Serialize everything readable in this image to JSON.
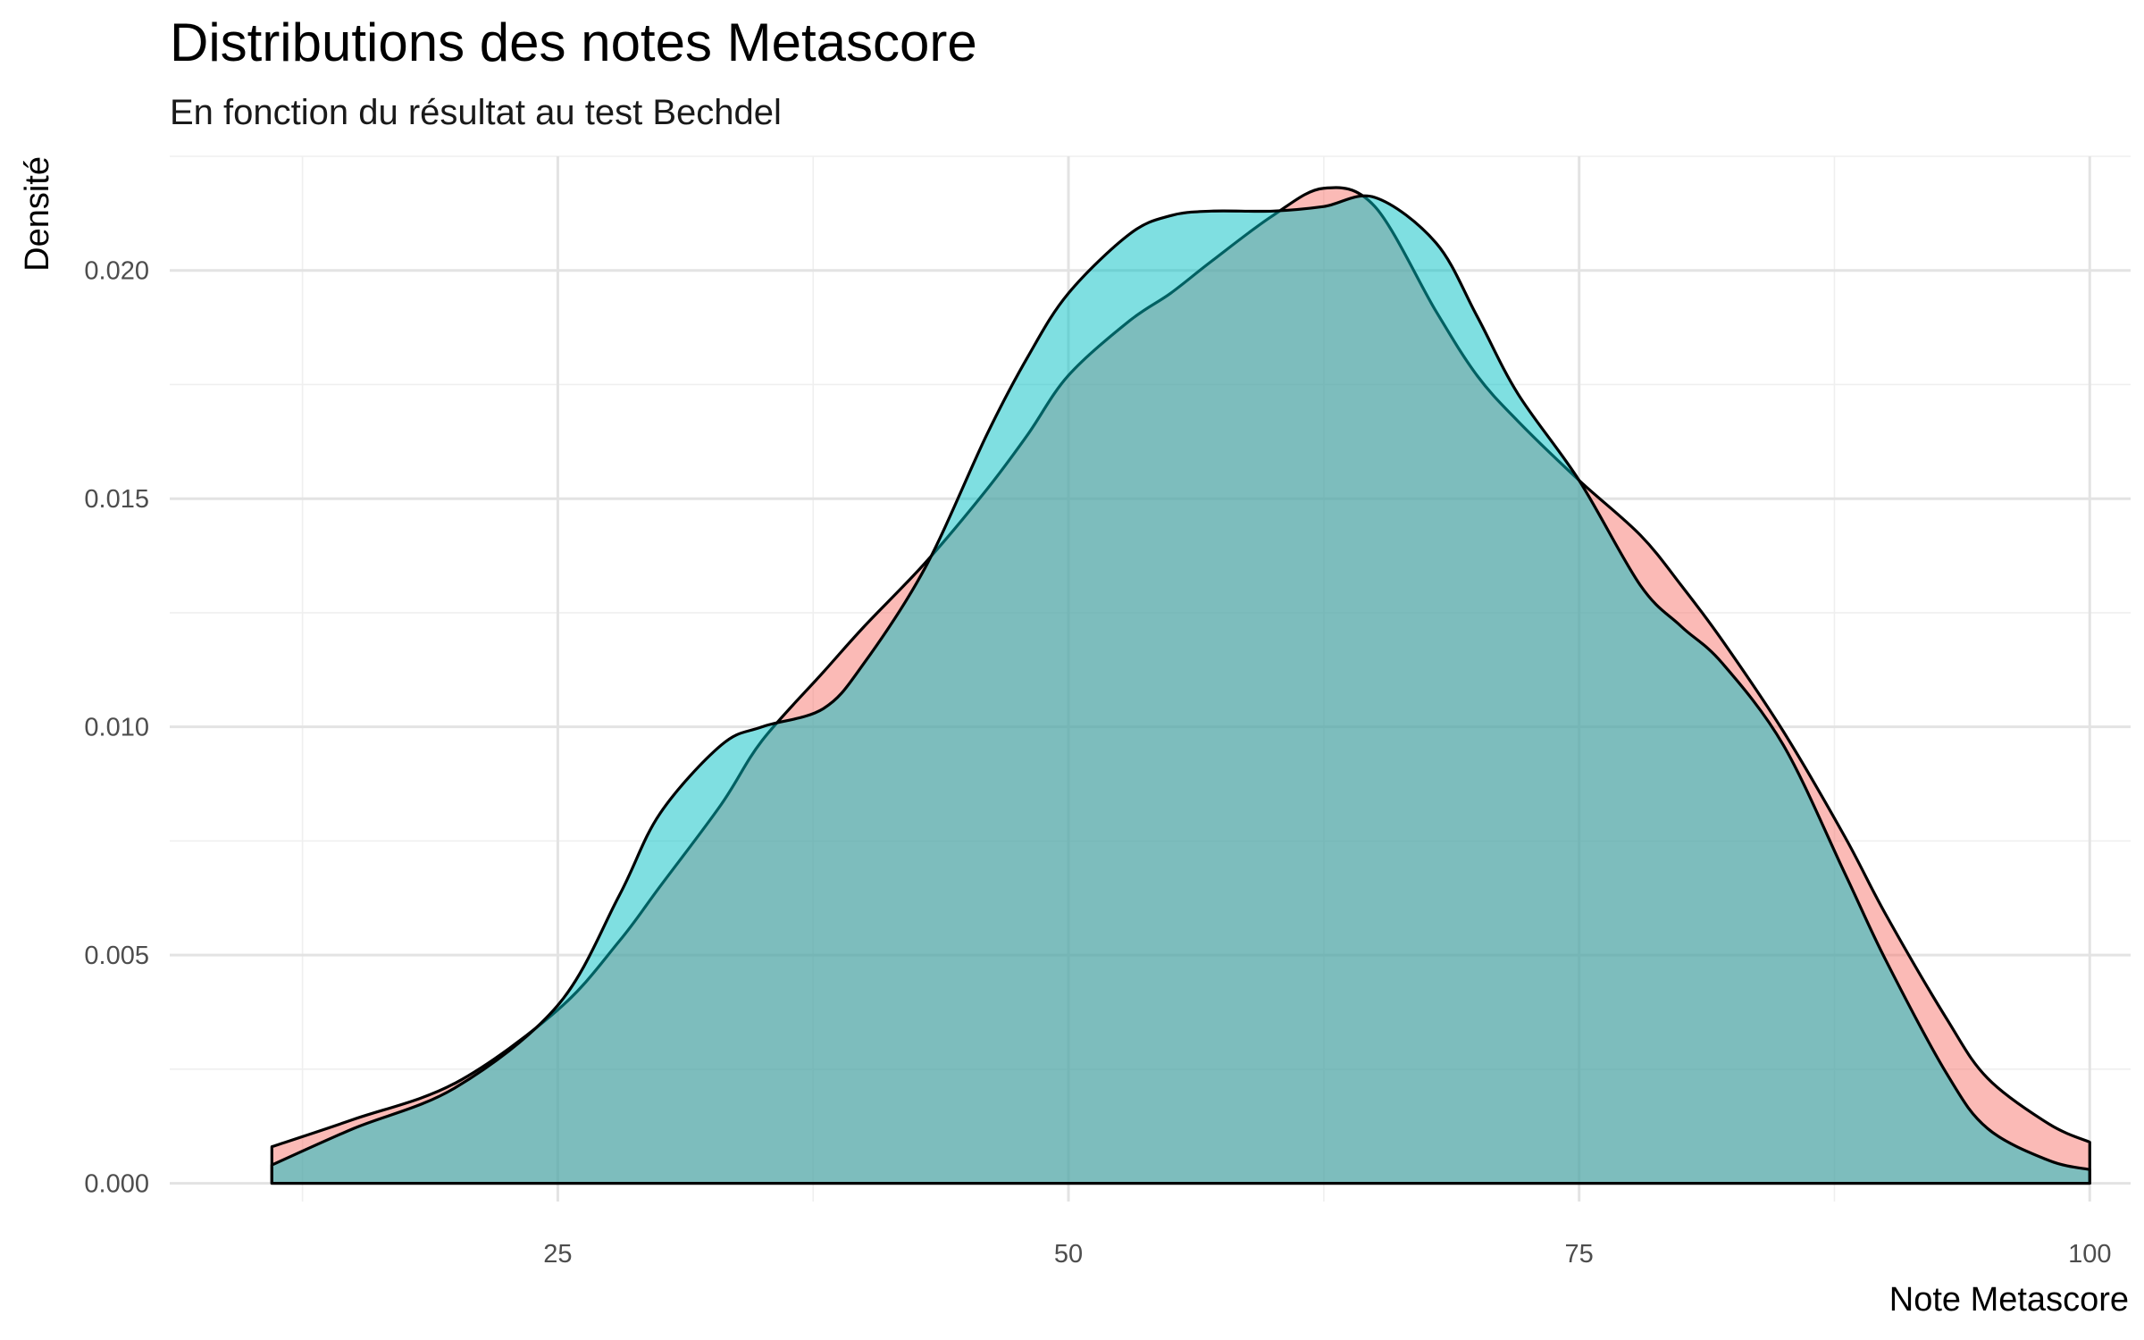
{
  "chart_data": {
    "type": "area",
    "title": "Distributions des notes Metascore",
    "subtitle": "En fonction du résultat au test Bechdel",
    "xlabel": "Note Metascore",
    "ylabel": "Densité",
    "xlim": [
      6,
      102
    ],
    "ylim": [
      -0.0004,
      0.0225
    ],
    "x_ticks": [
      25,
      50,
      75,
      100
    ],
    "y_ticks": [
      0.0,
      0.005,
      0.01,
      0.015,
      0.02
    ],
    "x_tick_labels": [
      "25",
      "50",
      "75",
      "100"
    ],
    "y_tick_labels": [
      "0.000",
      "0.005",
      "0.010",
      "0.015",
      "0.020"
    ],
    "grid": true,
    "legend": "none",
    "fill_opacity": 0.5,
    "colors": {
      "series_1": "#F8766D",
      "series_2": "#00BFC4",
      "outline": "#000000"
    },
    "series": [
      {
        "color": "#F8766D",
        "points": [
          [
            11,
            0.0008
          ],
          [
            15,
            0.0014
          ],
          [
            20,
            0.0022
          ],
          [
            25,
            0.0038
          ],
          [
            28,
            0.0053
          ],
          [
            30,
            0.0065
          ],
          [
            33,
            0.0083
          ],
          [
            35,
            0.0097
          ],
          [
            38,
            0.0112
          ],
          [
            40,
            0.0122
          ],
          [
            43,
            0.0136
          ],
          [
            46,
            0.0152
          ],
          [
            48,
            0.0164
          ],
          [
            50,
            0.0177
          ],
          [
            53,
            0.0189
          ],
          [
            55,
            0.0195
          ],
          [
            57,
            0.0202
          ],
          [
            60,
            0.0212
          ],
          [
            62.5,
            0.0218
          ],
          [
            65,
            0.0214
          ],
          [
            68,
            0.0191
          ],
          [
            70,
            0.0177
          ],
          [
            72,
            0.0167
          ],
          [
            75,
            0.0154
          ],
          [
            78,
            0.0142
          ],
          [
            80,
            0.0131
          ],
          [
            82,
            0.0119
          ],
          [
            85,
            0.0099
          ],
          [
            88,
            0.0076
          ],
          [
            90,
            0.0059
          ],
          [
            93,
            0.0036
          ],
          [
            95,
            0.0023
          ],
          [
            98,
            0.0013
          ],
          [
            100,
            0.0009
          ]
        ]
      },
      {
        "color": "#00BFC4",
        "points": [
          [
            11,
            0.0004
          ],
          [
            15,
            0.0012
          ],
          [
            20,
            0.0021
          ],
          [
            25,
            0.0039
          ],
          [
            28,
            0.0063
          ],
          [
            30,
            0.0081
          ],
          [
            33,
            0.0096
          ],
          [
            35,
            0.01
          ],
          [
            38,
            0.0104
          ],
          [
            40,
            0.0114
          ],
          [
            43,
            0.0135
          ],
          [
            46,
            0.0164
          ],
          [
            48,
            0.0181
          ],
          [
            50,
            0.0195
          ],
          [
            53,
            0.0208
          ],
          [
            55,
            0.0212
          ],
          [
            57,
            0.0213
          ],
          [
            60,
            0.0213
          ],
          [
            62.5,
            0.0214
          ],
          [
            65,
            0.0216
          ],
          [
            68,
            0.0206
          ],
          [
            70,
            0.019
          ],
          [
            72,
            0.0173
          ],
          [
            75,
            0.0154
          ],
          [
            78,
            0.0131
          ],
          [
            80,
            0.0122
          ],
          [
            82,
            0.0114
          ],
          [
            85,
            0.0096
          ],
          [
            88,
            0.0068
          ],
          [
            90,
            0.0049
          ],
          [
            93,
            0.0024
          ],
          [
            95,
            0.0012
          ],
          [
            98,
            0.0005
          ],
          [
            100,
            0.0003
          ]
        ]
      }
    ]
  }
}
